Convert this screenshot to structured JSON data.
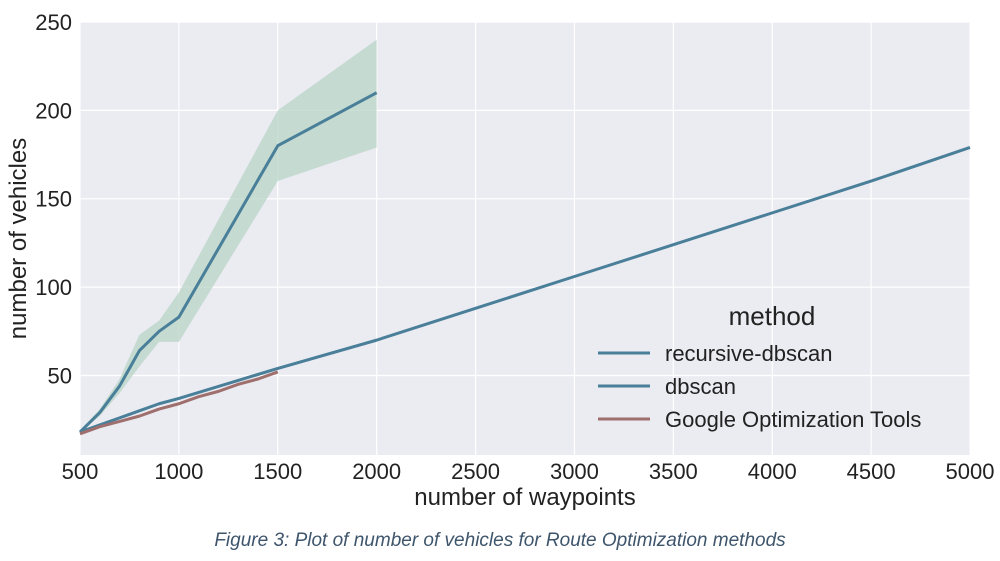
{
  "caption": "Figure 3: Plot of number of vehicles for Route Optimization methods",
  "chart_data": {
    "type": "line",
    "xlabel": "number of waypoints",
    "ylabel": "number of vehicles",
    "xlim": [
      500,
      5000
    ],
    "ylim": [
      5,
      250
    ],
    "xticks": [
      500,
      1000,
      1500,
      2000,
      2500,
      3000,
      3500,
      4000,
      4500,
      5000
    ],
    "yticks": [
      50,
      100,
      150,
      200,
      250
    ],
    "grid": true,
    "background": "#ebebf2",
    "legend": {
      "title": "method",
      "position": "lower-right"
    },
    "series": [
      {
        "name": "recursive-dbscan",
        "color": "#4a7f99",
        "x": [
          500,
          600,
          700,
          800,
          900,
          1000,
          1500,
          2000,
          2500,
          3000,
          3500,
          4000,
          4500,
          5000
        ],
        "y": [
          18,
          22,
          26,
          30,
          34,
          37,
          54,
          70,
          88,
          106,
          124,
          142,
          160,
          179
        ]
      },
      {
        "name": "dbscan",
        "color": "#4a7f99",
        "x": [
          500,
          600,
          700,
          800,
          900,
          1000,
          1500,
          2000
        ],
        "y": [
          18,
          29,
          44,
          64,
          75,
          83,
          180,
          210
        ],
        "band": {
          "color": "#b8d4c6",
          "lower": [
            18,
            27,
            40,
            55,
            69,
            69,
            160,
            179
          ],
          "upper": [
            19,
            31,
            48,
            73,
            81,
            97,
            200,
            240
          ]
        }
      },
      {
        "name": "Google Optimization Tools",
        "color": "#9e6f6d",
        "x": [
          500,
          600,
          700,
          800,
          900,
          1000,
          1100,
          1200,
          1300,
          1400,
          1500
        ],
        "y": [
          17,
          21,
          24,
          27,
          31,
          34,
          38,
          41,
          45,
          48,
          52
        ]
      }
    ]
  }
}
